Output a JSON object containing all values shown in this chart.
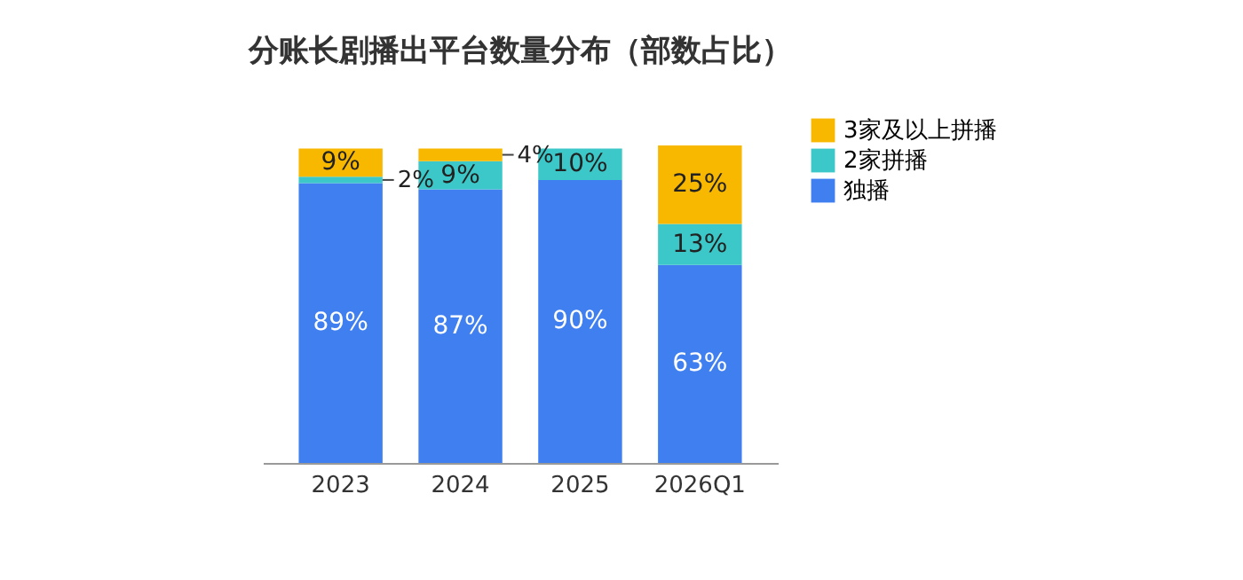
{
  "chart_data": {
    "type": "bar",
    "title": "分账长剧播出平台数量分布（部数占比）",
    "categories": [
      "2023",
      "2024",
      "2025",
      "2026Q1"
    ],
    "stacked": true,
    "legend": "right",
    "series": [
      {
        "name": "独播",
        "color": "#3f7ff0",
        "values": [
          89,
          87,
          90,
          63
        ],
        "value_labels": [
          "89%",
          "87%",
          "90%",
          "63%"
        ]
      },
      {
        "name": "2家拼播",
        "color": "#3cc8c8",
        "values": [
          2,
          9,
          10,
          13
        ],
        "value_labels": [
          "2%",
          "9%",
          "10%",
          "13%"
        ]
      },
      {
        "name": "3家及以上拼播",
        "color": "#f9b800",
        "values": [
          9,
          4,
          null,
          25
        ],
        "value_labels": [
          "9%",
          "4%",
          null,
          "25%"
        ]
      }
    ]
  }
}
